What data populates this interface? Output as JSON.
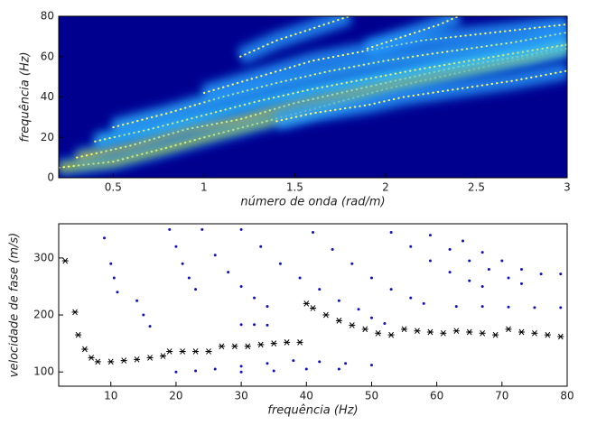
{
  "chart_data": [
    {
      "type": "heatmap",
      "xlabel": "número de onda (rad/m)",
      "ylabel": "frequência (Hz)",
      "xlim": [
        0.2,
        3
      ],
      "xticks": [
        0.5,
        1,
        1.5,
        2,
        2.5,
        3
      ],
      "ylim": [
        0,
        80
      ],
      "yticks": [
        0,
        20,
        40,
        60,
        80
      ],
      "background": "#00008f",
      "point_color": "#ffff66",
      "series": [
        {
          "color": "#ffff00",
          "x": [
            0.2,
            0.5,
            0.8,
            1.0,
            1.3,
            1.6,
            2.0,
            2.4,
            2.8,
            3.0
          ],
          "values": [
            5,
            8,
            15,
            20,
            27,
            34,
            44,
            52,
            60,
            64
          ]
        },
        {
          "color": "#ffd000",
          "x": [
            0.3,
            0.6,
            0.9,
            1.2,
            1.5,
            1.8,
            2.1,
            2.4,
            2.8,
            3.0
          ],
          "values": [
            10,
            16,
            24,
            29,
            37,
            43,
            49,
            55,
            61,
            66
          ]
        },
        {
          "color": "#40e0ff",
          "x": [
            0.4,
            0.7,
            1.0,
            1.3,
            1.6,
            1.9,
            2.2,
            2.6,
            3.0
          ],
          "values": [
            18,
            24,
            31,
            38,
            44,
            49,
            54,
            60,
            66
          ]
        },
        {
          "color": "#40c0ff",
          "x": [
            0.5,
            0.8,
            1.1,
            1.4,
            1.7,
            2.0,
            2.3,
            2.7,
            3.0
          ],
          "values": [
            25,
            32,
            40,
            47,
            53,
            58,
            62,
            67,
            72
          ]
        },
        {
          "color": "#30a0ff",
          "x": [
            1.0,
            1.3,
            1.6,
            1.9,
            2.2,
            2.6,
            3.0
          ],
          "values": [
            42,
            50,
            58,
            63,
            68,
            72,
            76
          ]
        },
        {
          "color": "#30a0ff",
          "x": [
            1.2,
            1.4,
            1.6,
            1.8
          ],
          "values": [
            60,
            68,
            74,
            80
          ]
        },
        {
          "color": "#30a0ff",
          "x": [
            1.9,
            2.1,
            2.3,
            2.4
          ],
          "values": [
            64,
            70,
            76,
            80
          ]
        },
        {
          "color": "#30a0ff",
          "x": [
            1.4,
            1.6,
            1.9,
            2.1,
            2.4,
            2.7,
            3.0
          ],
          "values": [
            28,
            32,
            36,
            40,
            44,
            48,
            53
          ]
        }
      ]
    },
    {
      "type": "scatter",
      "xlabel": "frequência (Hz)",
      "ylabel": "velocidade de fase (m/s)",
      "xlim": [
        2,
        80
      ],
      "xticks": [
        10,
        20,
        30,
        40,
        50,
        60,
        70,
        80
      ],
      "ylim": [
        75,
        360
      ],
      "yticks": [
        100,
        200,
        300
      ],
      "series": [
        {
          "color": "#000000",
          "marker": "star",
          "x": [
            3,
            4.5,
            5,
            6,
            7,
            8,
            10,
            12,
            14,
            16,
            18,
            19,
            21,
            23,
            25,
            27,
            29,
            31,
            33,
            35,
            37,
            39,
            40,
            41,
            43,
            45,
            47,
            49,
            51,
            53,
            55,
            57,
            59,
            61,
            63,
            65,
            67,
            69,
            71,
            73,
            75,
            77,
            79
          ],
          "values": [
            295,
            205,
            165,
            140,
            125,
            118,
            118,
            120,
            122,
            125,
            128,
            136,
            136,
            136,
            136,
            145,
            145,
            145,
            148,
            150,
            152,
            152,
            220,
            212,
            200,
            190,
            182,
            175,
            168,
            165,
            175,
            172,
            170,
            168,
            172,
            170,
            168,
            165,
            175,
            170,
            168,
            165,
            162
          ]
        },
        {
          "color": "#1010c0",
          "marker": "dot",
          "x": [
            9,
            10,
            10.5,
            11,
            14,
            15,
            16,
            19,
            20,
            21,
            22,
            23,
            24,
            26,
            28,
            30,
            32,
            34,
            30,
            33,
            36,
            39,
            42,
            45,
            48,
            50,
            52,
            41,
            44,
            47,
            50,
            53,
            56,
            58,
            53,
            56,
            59,
            62,
            65,
            67,
            59,
            62,
            65,
            68,
            71,
            73,
            64,
            67,
            70,
            73,
            76,
            79,
            63,
            67,
            71,
            75,
            79,
            20,
            23,
            26,
            30,
            34,
            38,
            42,
            46,
            50,
            30,
            35,
            40,
            45,
            30,
            32,
            34
          ],
          "values": [
            335,
            290,
            265,
            240,
            225,
            200,
            180,
            350,
            320,
            290,
            265,
            245,
            350,
            305,
            275,
            250,
            230,
            215,
            350,
            320,
            290,
            265,
            245,
            225,
            210,
            195,
            185,
            345,
            315,
            290,
            265,
            245,
            230,
            220,
            345,
            320,
            295,
            275,
            260,
            250,
            340,
            315,
            295,
            280,
            265,
            255,
            330,
            310,
            295,
            280,
            272,
            272,
            215,
            215,
            214,
            213,
            213,
            100,
            102,
            105,
            110,
            115,
            120,
            118,
            115,
            112,
            100,
            102,
            105,
            105,
            183,
            183,
            182
          ]
        }
      ]
    }
  ]
}
